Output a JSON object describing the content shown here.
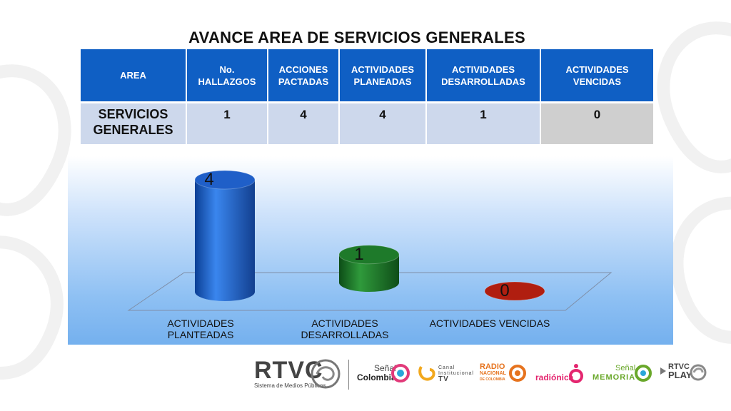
{
  "title": "AVANCE AREA DE SERVICIOS GENERALES",
  "table": {
    "headers": [
      [
        "AREA"
      ],
      [
        "No.",
        "HALLAZGOS"
      ],
      [
        "ACCIONES",
        "PACTADAS"
      ],
      [
        "ACTIVIDADES",
        "PLANEADAS"
      ],
      [
        "ACTIVIDADES",
        "DESARROLLADAS"
      ],
      [
        "ACTIVIDADES",
        "VENCIDAS"
      ]
    ],
    "row": {
      "area": [
        "SERVICIOS",
        "GENERALES"
      ],
      "values": [
        "1",
        "4",
        "4",
        "1",
        "0"
      ]
    }
  },
  "chart_data": {
    "type": "bar",
    "categories": [
      "ACTIVIDADES PLANTEADAS",
      "ACTIVIDADES DESARROLLADAS",
      "ACTIVIDADES VENCIDAS"
    ],
    "category_lines": [
      [
        "ACTIVIDADES",
        "PLANTEADAS"
      ],
      [
        "ACTIVIDADES",
        "DESARROLLADAS"
      ],
      [
        "ACTIVIDADES VENCIDAS"
      ]
    ],
    "values": [
      4,
      1,
      0
    ],
    "data_labels": [
      "4",
      "1",
      "0"
    ],
    "colors": [
      "#1f5fc8",
      "#1e7a2a",
      "#b01e10"
    ],
    "ylim": [
      0,
      4
    ],
    "style": "3d-cylinder",
    "grid": false,
    "legend": "none"
  },
  "footer": {
    "logos": {
      "rtvc": "RTVC",
      "rtvc_sub": "Sistema de Medios Públicos",
      "senal_colombia_1": "Señal",
      "senal_colombia_2": "Colombia",
      "canal_1": "Canal",
      "canal_2": "Institucional",
      "canal_3": "TV",
      "radio_1": "RADIO",
      "radio_2": "NACIONAL",
      "radio_3": "DE COLOMBIA",
      "radionica": "radiónica",
      "memoria_1": "Señal",
      "memoria_2": "MEMORIA",
      "play_1": "RTVC",
      "play_2": "PLAY"
    },
    "colors": {
      "rtvc": "#444444",
      "radionica": "#e4266f",
      "memoria": "#6aa82b",
      "radio": "#e6731e"
    }
  }
}
